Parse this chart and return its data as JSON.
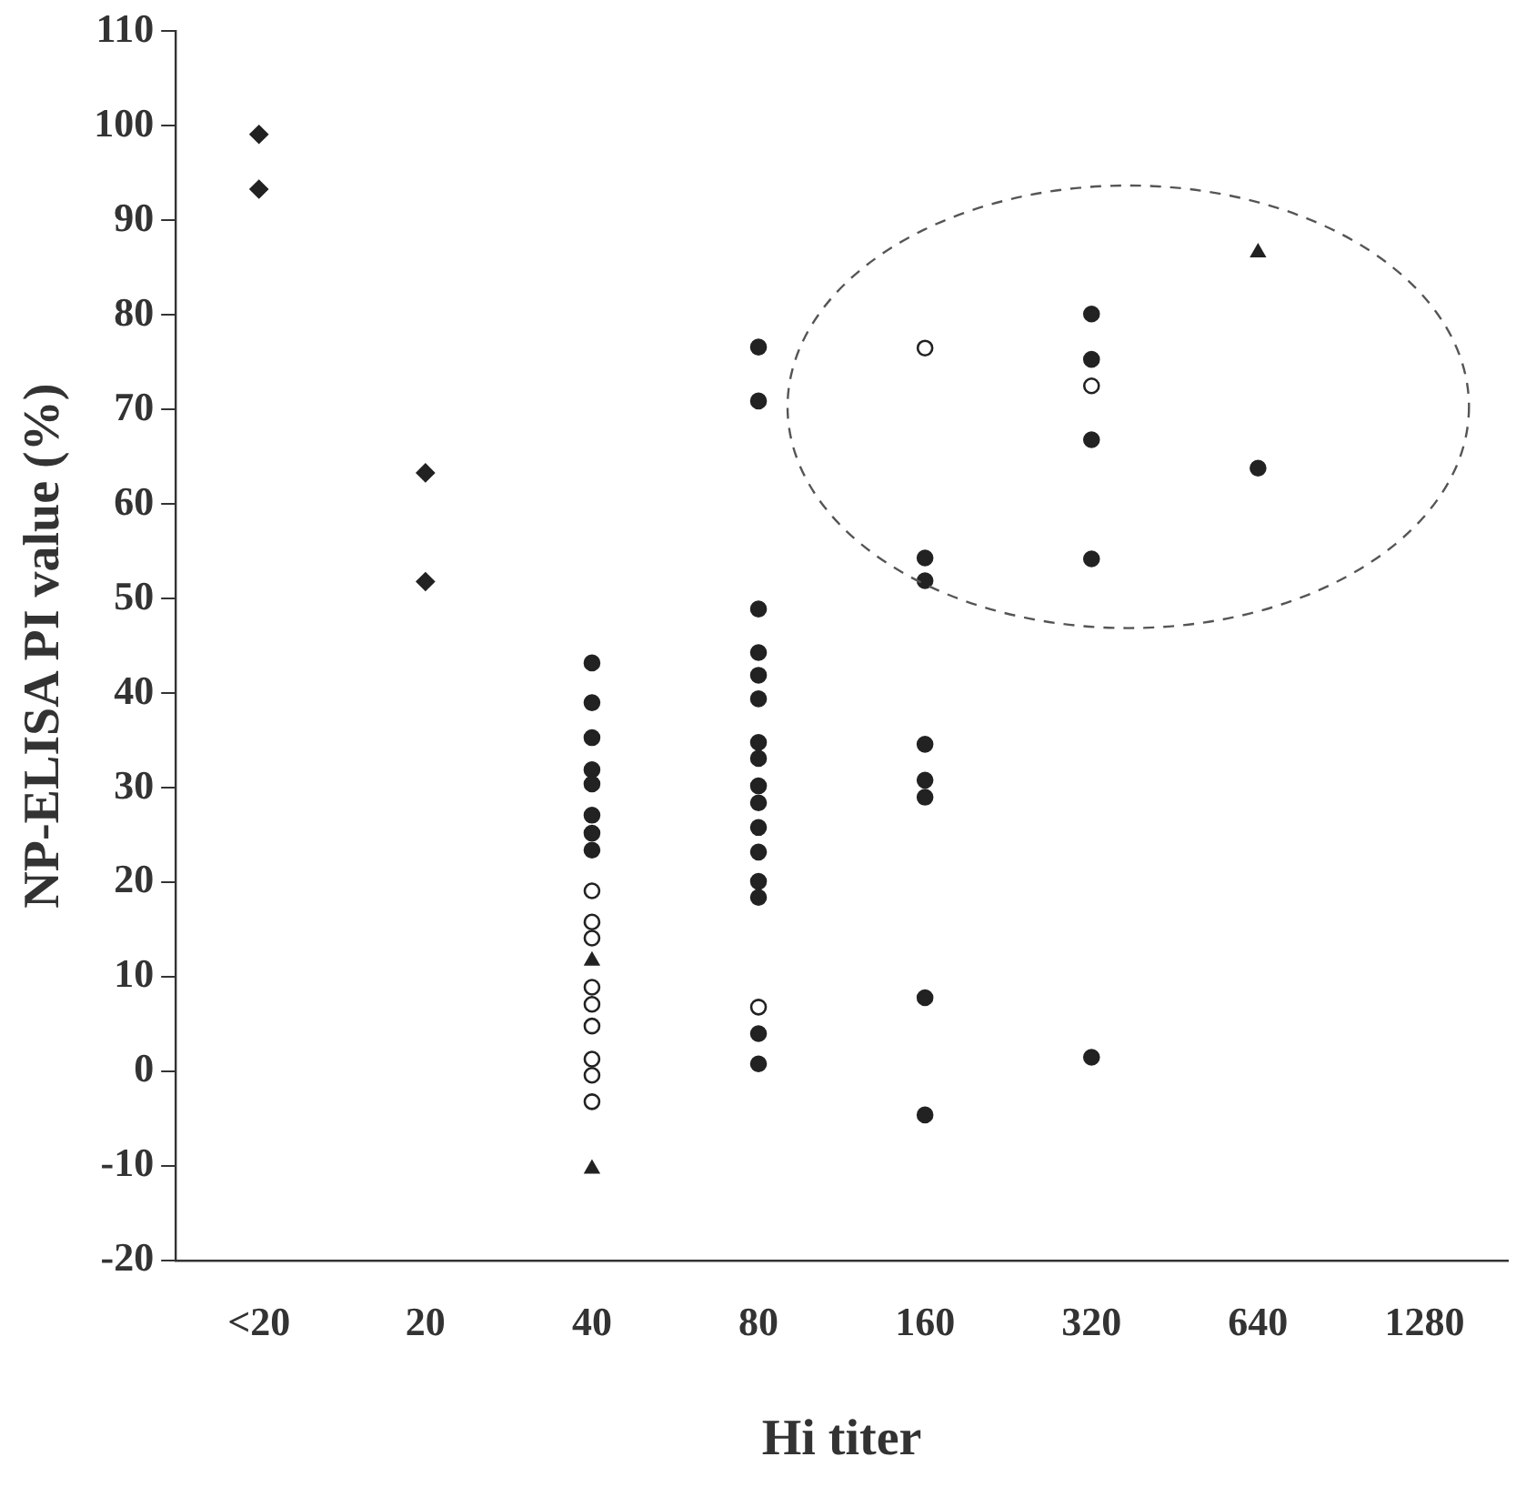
{
  "chart_data": {
    "type": "scatter",
    "xlabel": "Hi titer",
    "ylabel": "NP-ELISA PI value (%)",
    "categories": [
      "<20",
      "20",
      "40",
      "80",
      "160",
      "320",
      "640",
      "1280"
    ],
    "ylim": [
      -20,
      110
    ],
    "yticks": [
      -20,
      -10,
      0,
      10,
      20,
      30,
      40,
      50,
      60,
      70,
      80,
      90,
      100,
      110
    ],
    "grid": false,
    "legend": false,
    "series": [
      {
        "color": "#222222",
        "marker": "diamond",
        "x": [
          "<20",
          "<20",
          "20",
          "20"
        ],
        "values": [
          99.1,
          93.3,
          63.3,
          51.8
        ]
      },
      {
        "color": "#222222",
        "marker": "circle",
        "x": [
          "40",
          "40",
          "40",
          "40",
          "40",
          "40",
          "40",
          "40",
          "80",
          "80",
          "80",
          "80",
          "80",
          "80",
          "80",
          "80",
          "80",
          "80",
          "80",
          "80",
          "80",
          "80",
          "80",
          "80",
          "160",
          "160",
          "160",
          "160",
          "160",
          "160",
          "160",
          "320",
          "320",
          "320",
          "320",
          "320",
          "640"
        ],
        "values": [
          43.2,
          39.0,
          35.3,
          31.9,
          30.4,
          27.1,
          25.2,
          23.4,
          76.6,
          70.9,
          48.9,
          44.3,
          41.9,
          39.4,
          34.8,
          33.1,
          30.2,
          28.4,
          25.8,
          23.2,
          20.1,
          18.4,
          4.0,
          0.8,
          54.3,
          51.9,
          34.6,
          30.8,
          29.0,
          7.8,
          -4.6,
          80.1,
          75.3,
          66.8,
          54.2,
          1.5,
          63.8
        ]
      },
      {
        "color": "#ffffff",
        "marker": "circle",
        "x": [
          "40",
          "40",
          "40",
          "40",
          "40",
          "40",
          "40",
          "40",
          "40",
          "80",
          "160",
          "320"
        ],
        "values": [
          19.1,
          15.8,
          14.1,
          8.9,
          7.1,
          4.8,
          1.3,
          -0.4,
          -3.2,
          6.8,
          76.5,
          72.5
        ]
      },
      {
        "color": "#222222",
        "marker": "triangle",
        "x": [
          "40",
          "40",
          "640"
        ],
        "values": [
          11.7,
          -10.3,
          86.6
        ]
      }
    ]
  }
}
